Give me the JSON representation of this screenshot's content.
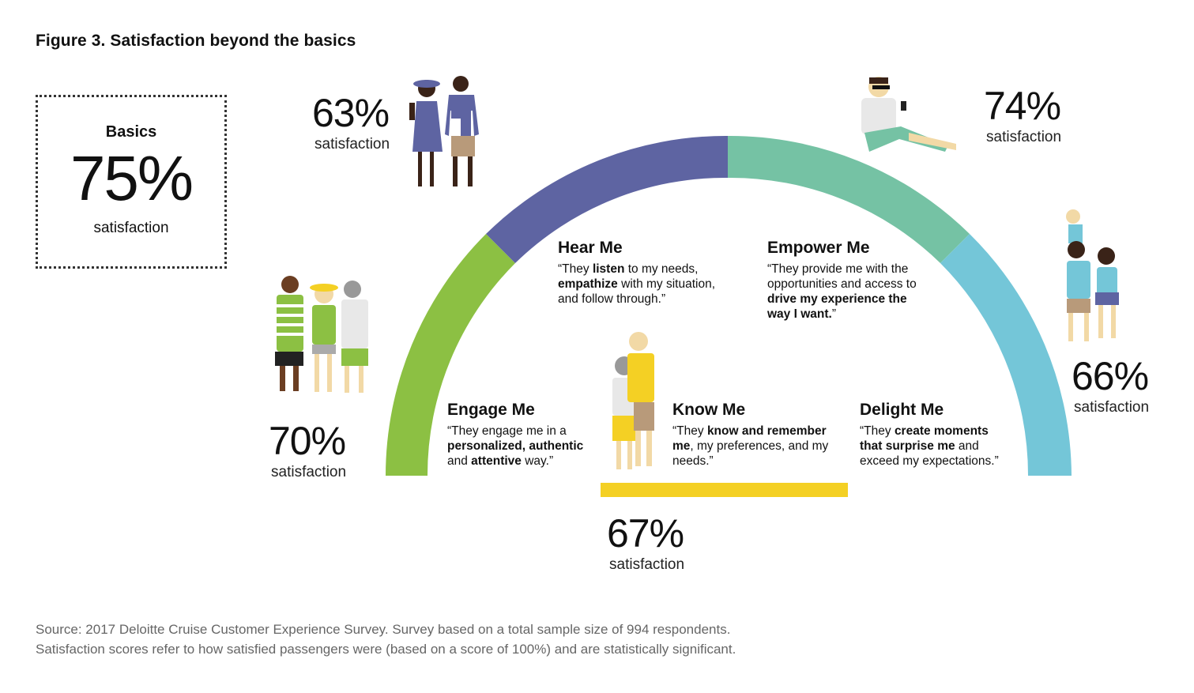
{
  "title": "Figure 3. Satisfaction beyond the basics",
  "basics": {
    "label": "Basics",
    "value": "75%",
    "caption": "satisfaction"
  },
  "segments": [
    {
      "name": "Engage Me",
      "pct": "70%",
      "caption": "satisfaction",
      "color": "#8cc043",
      "quote": [
        {
          "t": "“They engage me in a ",
          "b": false
        },
        {
          "t": "personalized, authentic",
          "b": true
        },
        {
          "t": " and ",
          "b": false
        },
        {
          "t": "attentive",
          "b": true
        },
        {
          "t": " way.”",
          "b": false
        }
      ]
    },
    {
      "name": "Hear Me",
      "pct": "63%",
      "caption": "satisfaction",
      "color": "#5e64a2",
      "quote": [
        {
          "t": "“They ",
          "b": false
        },
        {
          "t": "listen",
          "b": true
        },
        {
          "t": " to my needs, ",
          "b": false
        },
        {
          "t": "empathize",
          "b": true
        },
        {
          "t": " with my situation, and follow through.”",
          "b": false
        }
      ]
    },
    {
      "name": "Know Me",
      "pct": "67%",
      "caption": "satisfaction",
      "color": "#f4d024",
      "quote": [
        {
          "t": "“They ",
          "b": false
        },
        {
          "t": "know and remember me",
          "b": true
        },
        {
          "t": ", my preferences, and my needs.”",
          "b": false
        }
      ]
    },
    {
      "name": "Empower Me",
      "pct": "74%",
      "caption": "satisfaction",
      "color": "#75c2a4",
      "quote": [
        {
          "t": "“They provide me with the opportunities and access to ",
          "b": false
        },
        {
          "t": "drive my experience the way I want.",
          "b": true
        },
        {
          "t": "”",
          "b": false
        }
      ]
    },
    {
      "name": "Delight Me",
      "pct": "66%",
      "caption": "satisfaction",
      "color": "#74c6d8",
      "quote": [
        {
          "t": "“They ",
          "b": false
        },
        {
          "t": "create moments that surprise me",
          "b": true
        },
        {
          "t": " and exceed my expectations.”",
          "b": false
        }
      ]
    }
  ],
  "source": [
    "Source: 2017 Deloitte Cruise Customer Experience Survey. Survey based on a total sample size of 994 respondents.",
    "Satisfaction scores refer to how satisfied passengers were (based on a score of 100%) and are statistically significant."
  ],
  "icons": [
    "couple-icon",
    "group-of-three-icon",
    "elderly-couple-icon",
    "man-with-phone-icon",
    "family-icon"
  ]
}
